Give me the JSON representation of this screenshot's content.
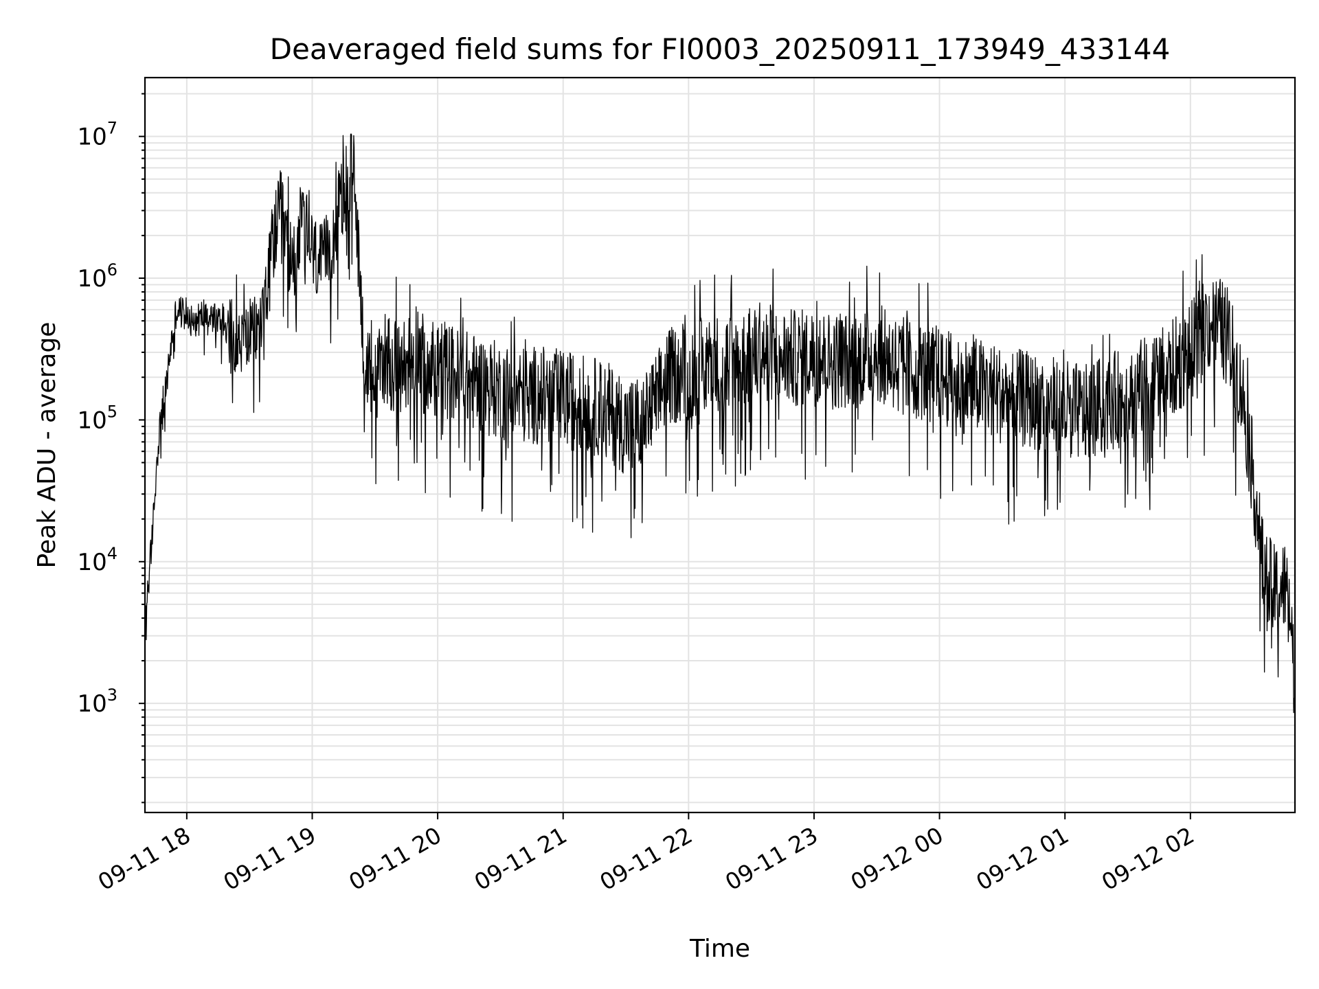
{
  "chart_data": {
    "type": "line",
    "title": "Deaveraged field sums for FI0003_20250911_173949_433144",
    "xlabel": "Time",
    "ylabel": "Peak ADU - average",
    "y_scale": "log",
    "grid": "major and minor",
    "line_color": "#000000",
    "xlim": [
      "09-11 17:40",
      "09-12 02:50"
    ],
    "ylim": [
      170,
      26000000
    ],
    "xtick_labels": [
      "09-11 18",
      "09-11 19",
      "09-11 20",
      "09-11 21",
      "09-11 22",
      "09-11 23",
      "09-12 00",
      "09-12 01",
      "09-12 02"
    ],
    "ytick_labels": [
      {
        "base": "10",
        "exp": "3",
        "value": 1000
      },
      {
        "base": "10",
        "exp": "4",
        "value": 10000
      },
      {
        "base": "10",
        "exp": "5",
        "value": 100000
      },
      {
        "base": "10",
        "exp": "6",
        "value": 1000000
      },
      {
        "base": "10",
        "exp": "7",
        "value": 10000000
      }
    ],
    "series": [
      {
        "x": [
          "09-11 17:40",
          "09-11 17:42",
          "09-11 17:44",
          "09-11 17:46",
          "09-11 17:48",
          "09-11 17:50",
          "09-11 17:52",
          "09-11 17:55",
          "09-11 18:00",
          "09-11 18:05",
          "09-11 18:10",
          "09-11 18:15",
          "09-11 18:20",
          "09-11 18:25",
          "09-11 18:30",
          "09-11 18:35",
          "09-11 18:40",
          "09-11 18:45",
          "09-11 18:50",
          "09-11 18:55",
          "09-11 19:00",
          "09-11 19:05",
          "09-11 19:10",
          "09-11 19:15",
          "09-11 19:20",
          "09-11 19:25",
          "09-11 19:30",
          "09-11 19:35",
          "09-11 19:40",
          "09-11 19:45",
          "09-11 19:50",
          "09-11 19:55",
          "09-11 20:00",
          "09-11 20:10",
          "09-11 20:20",
          "09-11 20:30",
          "09-11 20:40",
          "09-11 20:50",
          "09-11 21:00",
          "09-11 21:10",
          "09-11 21:20",
          "09-11 21:30",
          "09-11 21:40",
          "09-11 21:50",
          "09-11 22:00",
          "09-11 22:10",
          "09-11 22:20",
          "09-11 22:30",
          "09-11 22:40",
          "09-11 22:50",
          "09-11 23:00",
          "09-11 23:10",
          "09-11 23:20",
          "09-11 23:30",
          "09-11 23:40",
          "09-11 23:50",
          "09-12 00:00",
          "09-12 00:10",
          "09-12 00:20",
          "09-12 00:30",
          "09-12 00:40",
          "09-12 00:50",
          "09-12 01:00",
          "09-12 01:10",
          "09-12 01:20",
          "09-12 01:30",
          "09-12 01:40",
          "09-12 01:50",
          "09-12 02:00",
          "09-12 02:05",
          "09-12 02:10",
          "09-12 02:15",
          "09-12 02:20",
          "09-12 02:25",
          "09-12 02:30",
          "09-12 02:35",
          "09-12 02:40",
          "09-12 02:45",
          "09-12 02:48",
          "09-12 02:50"
        ],
        "y": [
          4000,
          8000,
          20000,
          60000,
          120000,
          160000,
          300000,
          600000,
          550000,
          500000,
          600000,
          500000,
          450000,
          350000,
          400000,
          450000,
          1500000,
          3000000,
          1200000,
          2500000,
          1500000,
          1200000,
          2000000,
          4000000,
          6000000,
          250000,
          180000,
          300000,
          220000,
          250000,
          350000,
          200000,
          250000,
          200000,
          180000,
          160000,
          150000,
          150000,
          140000,
          130000,
          120000,
          90000,
          100000,
          200000,
          220000,
          250000,
          260000,
          280000,
          300000,
          270000,
          280000,
          260000,
          270000,
          300000,
          250000,
          220000,
          200000,
          180000,
          170000,
          150000,
          140000,
          130000,
          120000,
          110000,
          130000,
          150000,
          180000,
          220000,
          300000,
          400000,
          500000,
          450000,
          300000,
          150000,
          40000,
          8000,
          6000,
          7000,
          4000,
          900
        ]
      }
    ]
  }
}
